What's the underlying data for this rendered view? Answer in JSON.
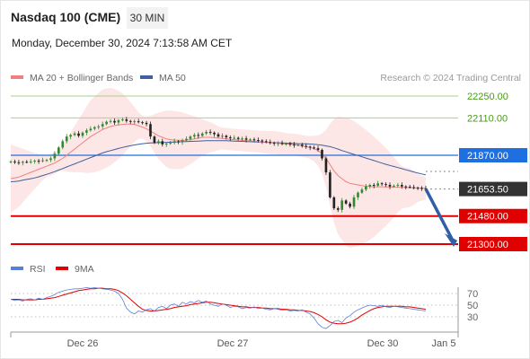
{
  "header": {
    "instrument": "Nasdaq 100 (CME)",
    "timeframe": "30 MIN",
    "timestamp": "Monday, December 30, 2024 7:13:58 AM CET"
  },
  "colors": {
    "ma20": "#f08080",
    "ma50": "#3f5f9f",
    "band_fill": "#fde0e0",
    "resistance": "#a8d08d",
    "support": "#e00000",
    "pivot": "#1e6fe0",
    "last": "#333333",
    "rsi": "#5b7fd9",
    "rsi_ma": "#e00000",
    "arrow": "#2f5fa7",
    "up_candle": "#2e8b2e",
    "down_candle": "#222222"
  },
  "chart_data": [
    {
      "type": "candlestick",
      "legend": [
        {
          "name": "MA 20 + Bollinger Bands",
          "color": "#f08080"
        },
        {
          "name": "MA 50",
          "color": "#3f5f9f"
        }
      ],
      "credit": "Research © 2024 Trading Central",
      "x_ticks": [
        "Dec 26",
        "Dec 27",
        "Dec 30",
        "Jan 5"
      ],
      "levels": [
        {
          "value": 22250,
          "label": "22250.00",
          "kind": "resistance"
        },
        {
          "value": 22110,
          "label": "22110.00",
          "kind": "resistance"
        },
        {
          "value": 21870,
          "label": "21870.00",
          "kind": "pivot"
        },
        {
          "value": 21653.5,
          "label": "21653.50",
          "kind": "last"
        },
        {
          "value": 21480,
          "label": "21480.00",
          "kind": "support"
        },
        {
          "value": 21300,
          "label": "21300.00",
          "kind": "support"
        }
      ],
      "close": [
        21830,
        21825,
        21822,
        21828,
        21826,
        21830,
        21835,
        21832,
        21838,
        21840,
        21850,
        21880,
        21920,
        21960,
        21990,
        22000,
        22010,
        21995,
        22015,
        22030,
        22040,
        22050,
        22055,
        22070,
        22085,
        22090,
        22080,
        22095,
        22100,
        22090,
        22085,
        22088,
        22082,
        22078,
        22070,
        21990,
        21950,
        21960,
        21940,
        21945,
        21950,
        21960,
        21955,
        21965,
        21975,
        21990,
        22000,
        21995,
        22010,
        22020,
        22015,
        22005,
        21990,
        21995,
        21985,
        21980,
        21982,
        21975,
        21978,
        21970,
        21972,
        21968,
        21965,
        21960,
        21955,
        21950,
        21945,
        21948,
        21942,
        21945,
        21940,
        21935,
        21938,
        21930,
        21925,
        21920,
        21915,
        21905,
        21850,
        21760,
        21600,
        21530,
        21520,
        21580,
        21560,
        21540,
        21600,
        21630,
        21650,
        21670,
        21680,
        21675,
        21690,
        21685,
        21680,
        21670,
        21675,
        21680,
        21670,
        21668,
        21665,
        21662,
        21660,
        21658,
        21653.5
      ],
      "ma20": [
        21720,
        21725,
        21730,
        21740,
        21750,
        21760,
        21770,
        21780,
        21790,
        21800,
        21810,
        21820,
        21835,
        21850,
        21870,
        21890,
        21910,
        21930,
        21950,
        21970,
        21990,
        22005,
        22020,
        22035,
        22045,
        22055,
        22060,
        22065,
        22068,
        22070,
        22070,
        22068,
        22060,
        22050,
        22040,
        22025,
        22010,
        21995,
        21985,
        21975,
        21970,
        21968,
        21966,
        21965,
        21968,
        21970,
        21975,
        21980,
        21985,
        21985,
        21985,
        21982,
        21980,
        21978,
        21975,
        21972,
        21970,
        21968,
        21966,
        21964,
        21962,
        21960,
        21958,
        21956,
        21954,
        21952,
        21950,
        21948,
        21945,
        21942,
        21940,
        21938,
        21935,
        21930,
        21925,
        21920,
        21912,
        21900,
        21880,
        21850,
        21810,
        21770,
        21740,
        21720,
        21700,
        21690,
        21685,
        21680,
        21675,
        21672,
        21670,
        21668,
        21668,
        21668,
        21667,
        21666,
        21665,
        21665,
        21664,
        21663,
        21662,
        21661,
        21660,
        21659,
        21658
      ],
      "ma50": [
        21700,
        21702,
        21705,
        21710,
        21715,
        21720,
        21725,
        21732,
        21740,
        21748,
        21756,
        21765,
        21775,
        21785,
        21795,
        21805,
        21815,
        21825,
        21835,
        21845,
        21855,
        21865,
        21875,
        21885,
        21893,
        21900,
        21907,
        21914,
        21920,
        21926,
        21931,
        21936,
        21940,
        21944,
        21947,
        21949,
        21950,
        21951,
        21952,
        21953,
        21954,
        21955,
        21956,
        21957,
        21958,
        21959,
        21960,
        21961,
        21962,
        21963,
        21964,
        21964,
        21964,
        21964,
        21963,
        21962,
        21961,
        21960,
        21959,
        21958,
        21957,
        21956,
        21955,
        21954,
        21953,
        21952,
        21951,
        21950,
        21949,
        21948,
        21947,
        21946,
        21945,
        21944,
        21943,
        21942,
        21940,
        21938,
        21935,
        21930,
        21925,
        21918,
        21910,
        21900,
        21892,
        21884,
        21876,
        21868,
        21860,
        21852,
        21844,
        21836,
        21828,
        21820,
        21812,
        21805,
        21798,
        21791,
        21784,
        21777,
        21770,
        21763,
        21756,
        21750,
        21744
      ]
    },
    {
      "type": "line",
      "legend": [
        {
          "name": "RSI",
          "color": "#5b7fd9"
        },
        {
          "name": "9MA",
          "color": "#e00000"
        }
      ],
      "y_ticks": [
        70,
        50,
        30
      ],
      "ylim": [
        0,
        100
      ],
      "rsi": [
        60,
        58,
        59,
        57,
        60,
        61,
        59,
        62,
        60,
        63,
        65,
        68,
        72,
        74,
        76,
        77,
        78,
        78,
        79,
        80,
        79,
        80,
        79,
        78,
        77,
        76,
        74,
        70,
        60,
        45,
        38,
        35,
        40,
        38,
        42,
        44,
        40,
        46,
        48,
        44,
        50,
        52,
        48,
        55,
        52,
        56,
        54,
        58,
        55,
        57,
        52,
        50,
        48,
        52,
        50,
        46,
        48,
        47,
        44,
        46,
        45,
        47,
        44,
        45,
        43,
        42,
        44,
        43,
        41,
        42,
        40,
        41,
        40,
        42,
        38,
        35,
        28,
        18,
        12,
        10,
        15,
        22,
        24,
        20,
        28,
        32,
        38,
        42,
        45,
        48,
        50,
        49,
        48,
        50,
        47,
        46,
        48,
        47,
        46,
        45,
        44,
        43,
        42,
        41,
        40
      ],
      "rsi_ma": [
        60,
        60,
        60,
        59,
        59,
        59,
        59,
        60,
        60,
        61,
        62,
        63,
        65,
        67,
        69,
        71,
        73,
        75,
        76,
        77,
        78,
        78,
        79,
        79,
        78,
        78,
        77,
        75,
        71,
        66,
        60,
        54,
        48,
        43,
        41,
        40,
        40,
        41,
        42,
        43,
        44,
        46,
        47,
        48,
        49,
        51,
        52,
        53,
        54,
        55,
        55,
        54,
        53,
        52,
        51,
        50,
        49,
        48,
        47,
        47,
        46,
        46,
        46,
        45,
        45,
        44,
        44,
        44,
        43,
        43,
        42,
        42,
        41,
        41,
        40,
        39,
        37,
        34,
        30,
        25,
        21,
        19,
        18,
        18,
        19,
        21,
        24,
        28,
        33,
        37,
        41,
        44,
        46,
        47,
        48,
        48,
        48,
        48,
        48,
        47,
        47,
        46,
        45,
        44,
        43
      ]
    }
  ]
}
